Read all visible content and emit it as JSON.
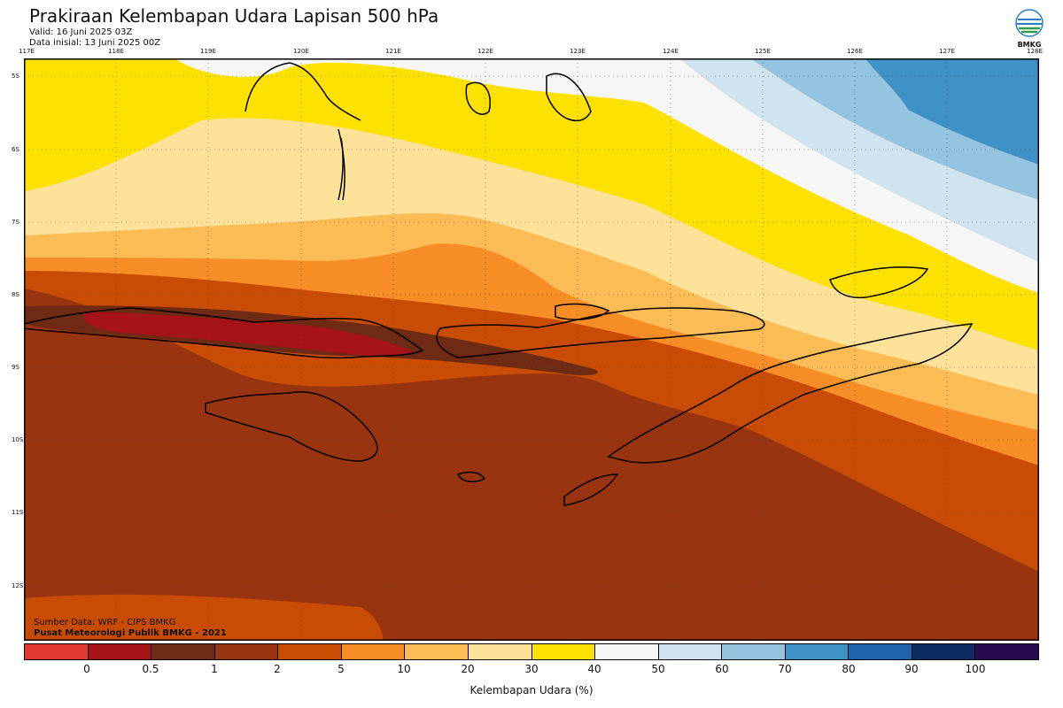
{
  "header": {
    "title": "Prakiraan Kelembapan Udara Lapisan 500 hPa",
    "valid": "Valid: 16 Juni 2025 03Z",
    "initial": "Data inisial: 13 Juni 2025 00Z"
  },
  "logo": {
    "text": "BMKG",
    "icon": "bmkg-logo-icon"
  },
  "axes": {
    "lon_labels": [
      "117E",
      "118E",
      "119E",
      "120E",
      "121E",
      "122E",
      "123E",
      "124E",
      "125E",
      "126E",
      "127E",
      "128E"
    ],
    "lat_labels": [
      "5S",
      "6S",
      "7S",
      "8S",
      "9S",
      "10S",
      "11S",
      "12S"
    ]
  },
  "footer": {
    "source": "Sumber Data: WRF - CIPS BMKG",
    "credit": "Pusat Meteorologi Publik BMKG - 2021"
  },
  "colorbar": {
    "ticks": [
      "0",
      "0.5",
      "1",
      "2",
      "5",
      "10",
      "20",
      "30",
      "40",
      "50",
      "60",
      "70",
      "80",
      "90",
      "100"
    ],
    "colors": [
      "#e2372f",
      "#a51218",
      "#6e2a12",
      "#983410",
      "#c84c04",
      "#f78d26",
      "#fcbc55",
      "#fee29a",
      "#fde100",
      "#f6f6f6",
      "#d0e4f0",
      "#94c4e0",
      "#3f92c8",
      "#1f63ac",
      "#0c2c62",
      "#2a0a4f"
    ],
    "label": "Kelembapan Udara (%)"
  },
  "map_colors": {
    "darkest": "#983410",
    "dark": "#c84c04",
    "redband": "#a51218",
    "brownband": "#6e2a12",
    "orange": "#f78d26",
    "lightorange": "#fcbc55",
    "pale": "#fee29a",
    "yellow": "#fde100",
    "white": "#f6f6f6",
    "lightblue": "#d0e4f0",
    "blue": "#94c4e0",
    "deepblue": "#3f92c8"
  }
}
